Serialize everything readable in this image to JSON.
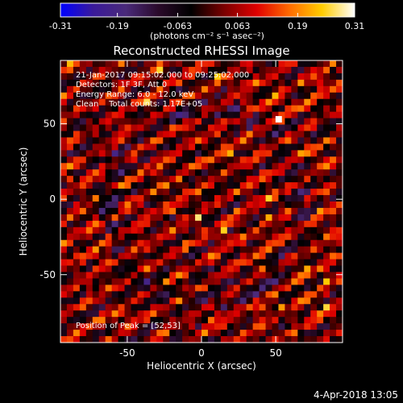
{
  "chart_data": {
    "type": "heatmap",
    "title": "Reconstructed RHESSI Image",
    "xlabel": "Heliocentric X (arcsec)",
    "ylabel": "Heliocentric Y (arcsec)",
    "xlim": [
      -95,
      95
    ],
    "ylim": [
      -95,
      92
    ],
    "x_ticks": [
      -50,
      0,
      50
    ],
    "y_ticks": [
      -50,
      0,
      50
    ],
    "grid": false,
    "colorscale": {
      "name": "hot-bipolar",
      "min": -0.31,
      "max": 0.31,
      "tick_values": [
        -0.31,
        -0.19,
        -0.063,
        0.063,
        0.19,
        0.31
      ],
      "tick_labels": [
        "-0.31",
        "-0.19",
        "-0.063",
        "0.063",
        "0.19",
        "0.31"
      ],
      "unit_label": "(photons cm⁻² s⁻¹ asec⁻²)",
      "stops": [
        "#0000ff",
        "#3a1a9a",
        "#4a2a7a",
        "#2a0a2a",
        "#000000",
        "#7a0000",
        "#e00000",
        "#ff6a00",
        "#ffcc00",
        "#ffffff"
      ]
    },
    "annotations": {
      "line1": "21-Jan-2017 09:15:02.000 to 09:25:02.000",
      "line2": "Detectors: 1F 3F, Att 0",
      "line3": "Energy Range: 6.0 - 12.0 keV",
      "line4": "Clean    Total counts: 1.17E+05",
      "peak": "Position of Peak = [52,53]"
    },
    "peak": {
      "x": 52,
      "y": 53,
      "value": 0.31
    },
    "pattern": {
      "description_type": "striped-noise",
      "stripe_angle_deg": 30,
      "pixel_arcsec": 4
    }
  },
  "footer": {
    "timestamp": "4-Apr-2018 13:05"
  }
}
